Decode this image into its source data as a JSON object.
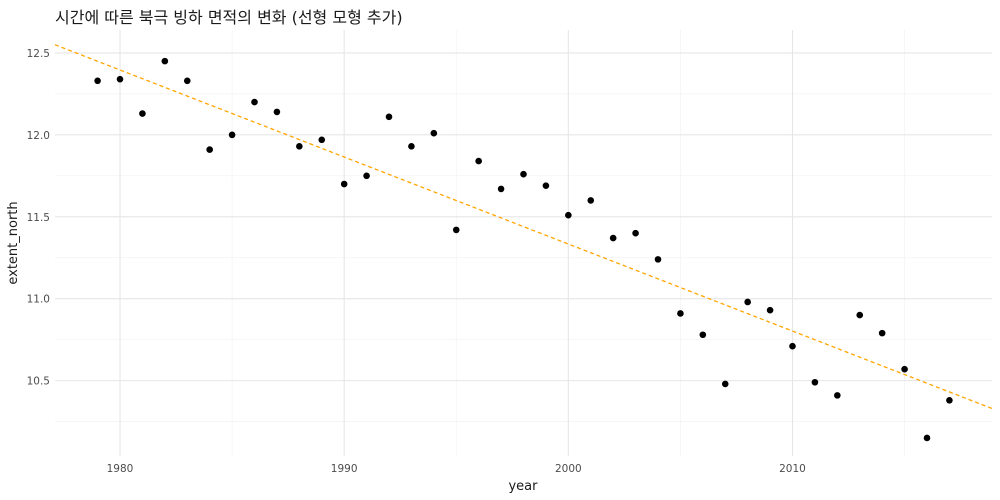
{
  "chart_data": {
    "type": "scatter",
    "title": "시간에 따른 북극 빙하 면적의 변화 (선형 모형 추가)",
    "xlabel": "year",
    "ylabel": "extent_north",
    "xlim": [
      1977.1,
      2018.9
    ],
    "ylim": [
      10.04,
      12.64
    ],
    "x_ticks": [
      1980,
      1990,
      2000,
      2010
    ],
    "y_ticks": [
      10.5,
      11.0,
      11.5,
      12.0,
      12.5
    ],
    "x_tick_labels": [
      "1980",
      "1990",
      "2000",
      "2010"
    ],
    "y_tick_labels": [
      "10.5",
      "11.0",
      "11.5",
      "12.0",
      "12.5"
    ],
    "grid": true,
    "point_color": "#000000",
    "trend_color": "#FFA500",
    "x": [
      1979,
      1980,
      1981,
      1982,
      1983,
      1984,
      1985,
      1986,
      1987,
      1988,
      1989,
      1990,
      1991,
      1992,
      1993,
      1994,
      1995,
      1996,
      1997,
      1998,
      1999,
      2000,
      2001,
      2002,
      2003,
      2004,
      2005,
      2006,
      2007,
      2008,
      2009,
      2010,
      2011,
      2012,
      2013,
      2014,
      2015,
      2016,
      2017
    ],
    "y": [
      12.33,
      12.34,
      12.13,
      12.45,
      12.33,
      11.91,
      12.0,
      12.2,
      12.14,
      11.93,
      11.97,
      11.7,
      11.75,
      12.11,
      11.93,
      12.01,
      11.42,
      11.84,
      11.67,
      11.76,
      11.69,
      11.51,
      11.6,
      11.37,
      11.4,
      11.24,
      10.91,
      10.78,
      10.48,
      10.98,
      10.93,
      10.71,
      10.49,
      10.41,
      10.9,
      10.79,
      10.57,
      10.15,
      10.38
    ],
    "trend_line": {
      "x": [
        1977.1,
        2018.9
      ],
      "y": [
        12.55,
        10.33
      ]
    }
  }
}
